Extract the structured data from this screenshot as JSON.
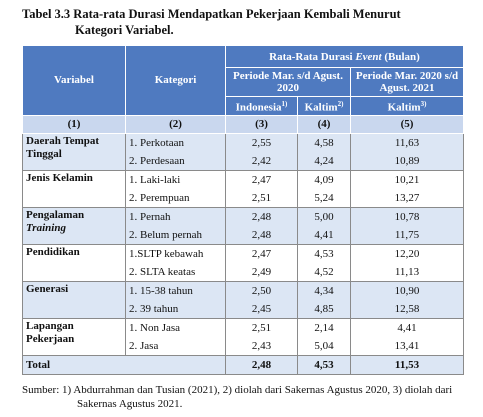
{
  "header": {
    "title_label": "Tabel 3.3",
    "title_line1": "Rata-rata Durasi Mendapatkan Pekerjaan Kembali Menurut",
    "title_line2": "Kategori Variabel."
  },
  "table": {
    "head": {
      "variable": "Variabel",
      "category": "Kategori",
      "group_title": {
        "before": "Rata-Rata Durasi ",
        "italic": "Event",
        "after": " (Bulan)"
      },
      "period1": "Periode Mar. s/d Agust. 2020",
      "period2": "Periode Mar. 2020 s/d Agust. 2021",
      "columns": [
        {
          "label": "Indonesia",
          "note": "1)"
        },
        {
          "label": "Kaltim",
          "note": "2)"
        },
        {
          "label": "Kaltim",
          "note": "3)"
        }
      ],
      "numbers": [
        "(1)",
        "(2)",
        "(3)",
        "(4)",
        "(5)"
      ]
    },
    "groups": [
      {
        "variable": "Daerah Tempat Tinggal",
        "rows": [
          [
            "1. Perkotaan",
            "2,55",
            "4,58",
            "11,63"
          ],
          [
            "2. Perdesaan",
            "2,42",
            "4,24",
            "10,89"
          ]
        ]
      },
      {
        "variable": "Jenis Kelamin",
        "rows": [
          [
            "1. Laki-laki",
            "2,47",
            "4,09",
            "10,21"
          ],
          [
            "2. Perempuan",
            "2,51",
            "5,24",
            "13,27"
          ]
        ]
      },
      {
        "variable": "Pengalaman",
        "variable_italic": "Training",
        "rows": [
          [
            "1. Pernah",
            "2,48",
            "5,00",
            "10,78"
          ],
          [
            "2. Belum pernah",
            "2,48",
            "4,41",
            "11,75"
          ]
        ]
      },
      {
        "variable": "Pendidikan",
        "rows": [
          [
            "1.SLTP kebawah",
            "2,47",
            "4,53",
            "12,20"
          ],
          [
            "2. SLTA keatas",
            "2,49",
            "4,52",
            "11,13"
          ]
        ]
      },
      {
        "variable": "Generasi",
        "rows": [
          [
            "1. 15-38 tahun",
            "2,50",
            "4,34",
            "10,90"
          ],
          [
            "2. 39 tahun",
            "2,45",
            "4,85",
            "12,58"
          ]
        ]
      },
      {
        "variable": "Lapangan Pekerjaan",
        "rows": [
          [
            "1. Non Jasa",
            "2,51",
            "2,14",
            "4,41"
          ],
          [
            "2. Jasa",
            "2,43",
            "5,04",
            "13,41"
          ]
        ]
      }
    ],
    "total": {
      "label": "Total",
      "values": [
        "2,48",
        "4,53",
        "11,53"
      ]
    }
  },
  "source": "Sumber: 1) Abdurrahman dan Tusian (2021), 2) diolah dari Sakernas Agustus 2020, 3) diolah dari Sakernas Agustus 2021."
}
